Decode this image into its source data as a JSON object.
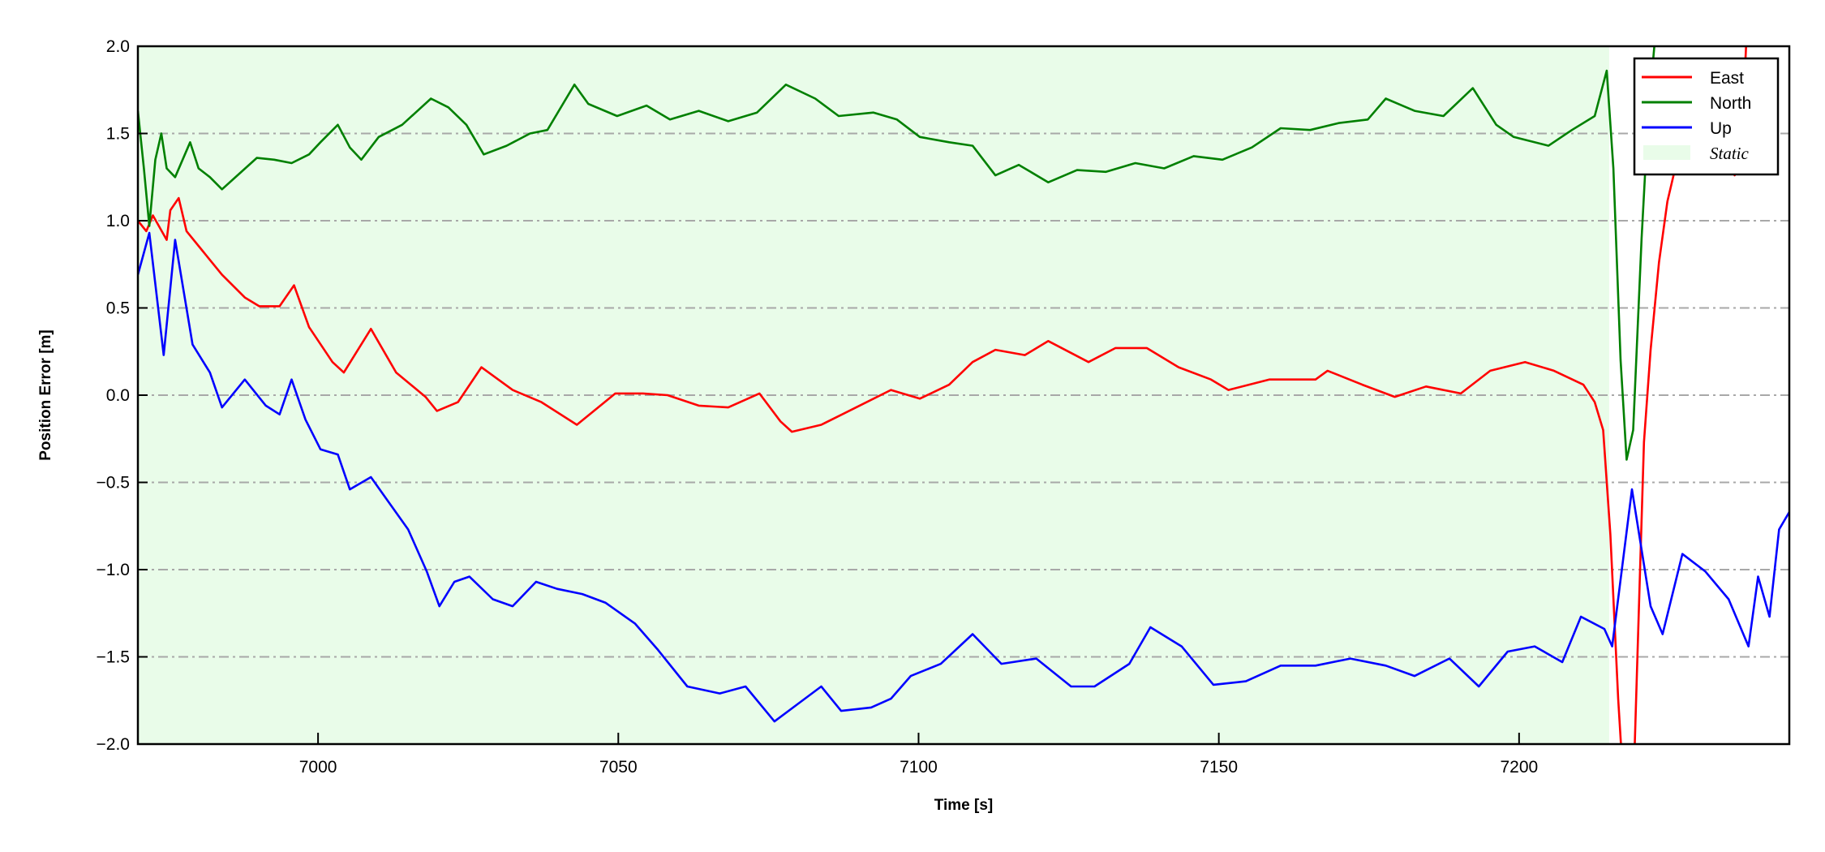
{
  "chart_data": {
    "type": "line",
    "title": "",
    "xlabel": "Time [s]",
    "ylabel": "Position Error [m]",
    "xlim": [
      6970,
      7245
    ],
    "ylim": [
      -2.0,
      2.0
    ],
    "xticks": [
      7000,
      7050,
      7100,
      7150,
      7200
    ],
    "yticks": [
      -2.0,
      -1.5,
      -1.0,
      -0.5,
      0.0,
      0.5,
      1.0,
      1.5,
      2.0
    ],
    "ytick_labels": [
      "−2.0",
      "−1.5",
      "−1.0",
      "−0.5",
      "0.0",
      "0.5",
      "1.0",
      "1.5",
      "2.0"
    ],
    "grid": "horizontal dash-dot gray",
    "legend_placement": "top-right",
    "shaded_region": {
      "name": "Static",
      "x": [
        6970,
        7215
      ],
      "color": "#e9fce9"
    },
    "series": [
      {
        "name": "East",
        "color": "#ff0000",
        "x": [
          6970.0,
          6971.4,
          6972.5,
          6974.8,
          6975.4,
          6976.8,
          6978.1,
          6980.7,
          6984.0,
          6987.8,
          6990.2,
          6993.6,
          6996.0,
          6998.5,
          7002.4,
          7004.3,
          7008.8,
          7013.0,
          7017.9,
          7019.8,
          7023.3,
          7027.2,
          7032.4,
          7037.2,
          7043.1,
          7049.5,
          7054.1,
          7058.2,
          7063.4,
          7068.3,
          7073.5,
          7077.0,
          7078.9,
          7083.8,
          7089.6,
          7095.4,
          7100.2,
          7105.1,
          7109.0,
          7112.8,
          7117.7,
          7121.6,
          7128.3,
          7132.8,
          7138.0,
          7143.3,
          7148.7,
          7151.6,
          7158.4,
          7166.1,
          7168.1,
          7173.9,
          7179.3,
          7184.5,
          7190.3,
          7195.2,
          7201.0,
          7205.8,
          7210.7,
          7212.6,
          7214.0,
          7215.2,
          7216.5,
          7217.5,
          7219.0,
          7220.8,
          7221.9,
          7223.3,
          7224.7,
          7226.2,
          7230.1,
          7232.0,
          7234.0,
          7235.9,
          7236.9,
          7238.2
        ],
        "values": [
          1.0,
          0.94,
          1.03,
          0.89,
          1.06,
          1.13,
          0.94,
          0.83,
          0.69,
          0.56,
          0.51,
          0.51,
          0.63,
          0.39,
          0.19,
          0.13,
          0.38,
          0.13,
          -0.01,
          -0.09,
          -0.04,
          0.16,
          0.03,
          -0.04,
          -0.17,
          0.01,
          0.01,
          0.0,
          -0.06,
          -0.07,
          0.01,
          -0.15,
          -0.21,
          -0.17,
          -0.07,
          0.03,
          -0.02,
          0.06,
          0.19,
          0.26,
          0.23,
          0.31,
          0.19,
          0.27,
          0.27,
          0.16,
          0.09,
          0.03,
          0.09,
          0.09,
          0.14,
          0.06,
          -0.01,
          0.05,
          0.01,
          0.14,
          0.19,
          0.14,
          0.06,
          -0.04,
          -0.2,
          -0.8,
          -1.74,
          -2.3,
          -2.3,
          -0.27,
          0.26,
          0.76,
          1.11,
          1.33,
          1.79,
          1.89,
          1.85,
          1.26,
          1.33,
          2.3
        ]
      },
      {
        "name": "North",
        "color": "#008000",
        "x": [
          6970.0,
          6971.0,
          6971.9,
          6972.9,
          6973.9,
          6974.8,
          6976.2,
          6978.7,
          6980.1,
          6982.0,
          6984.0,
          6986.9,
          6989.8,
          6992.7,
          6995.6,
          6998.5,
          7000.4,
          7003.3,
          7005.3,
          7007.2,
          7010.1,
          7014.0,
          7018.8,
          7021.7,
          7024.7,
          7027.6,
          7031.4,
          7035.3,
          7038.2,
          7042.7,
          7045.0,
          7049.8,
          7054.7,
          7058.6,
          7063.4,
          7068.3,
          7073.1,
          7077.9,
          7082.8,
          7086.7,
          7092.5,
          7096.4,
          7100.2,
          7105.1,
          7109.0,
          7112.8,
          7116.7,
          7121.6,
          7126.4,
          7131.2,
          7136.1,
          7140.9,
          7145.8,
          7150.6,
          7155.5,
          7160.3,
          7165.2,
          7170.0,
          7174.8,
          7177.8,
          7182.6,
          7187.4,
          7192.3,
          7196.2,
          7199.1,
          7204.9,
          7208.8,
          7212.6,
          7214.6,
          7215.7,
          7216.9,
          7217.9,
          7219.0,
          7220.4,
          7221.5,
          7223.3
        ],
        "values": [
          1.63,
          1.3,
          0.97,
          1.35,
          1.5,
          1.3,
          1.25,
          1.45,
          1.3,
          1.25,
          1.18,
          1.27,
          1.36,
          1.35,
          1.33,
          1.38,
          1.45,
          1.55,
          1.42,
          1.35,
          1.48,
          1.55,
          1.7,
          1.65,
          1.55,
          1.38,
          1.43,
          1.5,
          1.52,
          1.78,
          1.67,
          1.6,
          1.66,
          1.58,
          1.63,
          1.57,
          1.62,
          1.78,
          1.7,
          1.6,
          1.62,
          1.58,
          1.48,
          1.45,
          1.43,
          1.26,
          1.32,
          1.22,
          1.29,
          1.28,
          1.33,
          1.3,
          1.37,
          1.35,
          1.42,
          1.53,
          1.52,
          1.56,
          1.58,
          1.7,
          1.63,
          1.6,
          1.76,
          1.55,
          1.48,
          1.43,
          1.52,
          1.6,
          1.86,
          1.3,
          0.2,
          -0.37,
          -0.2,
          0.9,
          1.6,
          2.3
        ]
      },
      {
        "name": "Up",
        "color": "#0000ff",
        "x": [
          6970.0,
          6971.9,
          6974.3,
          6976.2,
          6979.1,
          6982.0,
          6984.0,
          6987.8,
          6991.3,
          6993.6,
          6995.6,
          6997.9,
          7000.4,
          7003.3,
          7005.3,
          7008.8,
          7011.7,
          7015.0,
          7018.1,
          7020.2,
          7022.7,
          7025.2,
          7029.1,
          7032.4,
          7036.3,
          7039.8,
          7044.0,
          7047.9,
          7052.8,
          7056.6,
          7061.5,
          7066.9,
          7071.2,
          7076.0,
          7079.9,
          7083.8,
          7087.1,
          7092.1,
          7095.4,
          7098.7,
          7103.7,
          7109.0,
          7113.8,
          7119.6,
          7125.4,
          7129.3,
          7135.1,
          7138.6,
          7143.8,
          7149.1,
          7154.5,
          7160.3,
          7166.1,
          7171.9,
          7177.8,
          7182.6,
          7188.4,
          7193.3,
          7198.1,
          7202.6,
          7207.2,
          7210.3,
          7214.2,
          7215.5,
          7218.8,
          7221.9,
          7223.9,
          7227.2,
          7231.0,
          7234.9,
          7238.2,
          7239.8,
          7241.7,
          7243.3,
          7245.0
        ],
        "values": [
          0.69,
          0.93,
          0.23,
          0.89,
          0.29,
          0.13,
          -0.07,
          0.09,
          -0.06,
          -0.11,
          0.09,
          -0.14,
          -0.31,
          -0.34,
          -0.54,
          -0.47,
          -0.61,
          -0.77,
          -1.01,
          -1.21,
          -1.07,
          -1.04,
          -1.17,
          -1.21,
          -1.07,
          -1.11,
          -1.14,
          -1.19,
          -1.31,
          -1.46,
          -1.67,
          -1.71,
          -1.67,
          -1.87,
          -1.77,
          -1.67,
          -1.81,
          -1.79,
          -1.74,
          -1.61,
          -1.54,
          -1.37,
          -1.54,
          -1.51,
          -1.67,
          -1.67,
          -1.54,
          -1.33,
          -1.44,
          -1.66,
          -1.64,
          -1.55,
          -1.55,
          -1.51,
          -1.55,
          -1.61,
          -1.51,
          -1.67,
          -1.47,
          -1.44,
          -1.53,
          -1.27,
          -1.34,
          -1.44,
          -0.54,
          -1.21,
          -1.37,
          -0.91,
          -1.01,
          -1.17,
          -1.44,
          -1.04,
          -1.27,
          -0.77,
          -0.67
        ]
      }
    ]
  }
}
